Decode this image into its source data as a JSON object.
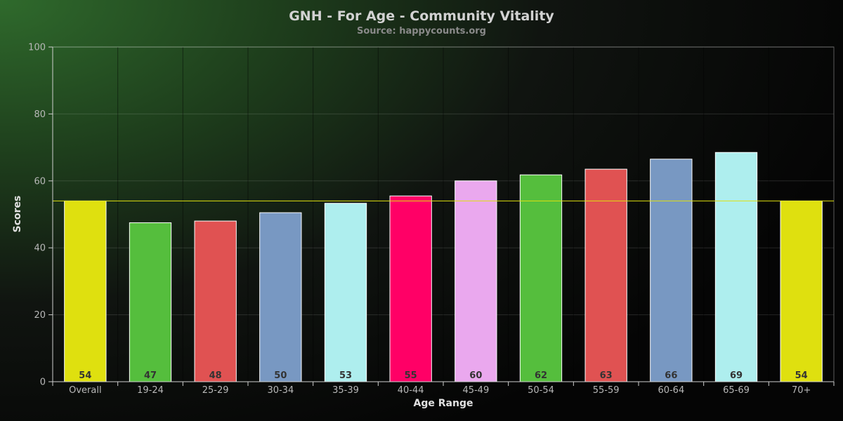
{
  "chart_data": {
    "type": "bar",
    "title": "GNH - For Age - Community Vitality",
    "subtitle": "Source: happycounts.org",
    "xlabel": "Age Range",
    "ylabel": "Scores",
    "ylim": [
      0,
      100
    ],
    "yticks": [
      0,
      20,
      40,
      60,
      80,
      100
    ],
    "grid": true,
    "categories": [
      "Overall",
      "19-24",
      "25-29",
      "30-34",
      "35-39",
      "40-44",
      "45-49",
      "50-54",
      "55-59",
      "60-64",
      "65-69",
      "70+"
    ],
    "values": [
      54,
      47.5,
      48,
      50.5,
      53.3,
      55.5,
      60,
      61.8,
      63.5,
      66.5,
      68.5,
      54
    ],
    "data_labels": [
      "54",
      "47",
      "48",
      "50",
      "53",
      "55",
      "60",
      "62",
      "63",
      "66",
      "69",
      "54"
    ],
    "bar_colors": [
      "#dfe00f",
      "#55be3d",
      "#e05252",
      "#7898c2",
      "#aeeeee",
      "#ff0066",
      "#eaa8ee",
      "#55be3d",
      "#e05252",
      "#7898c2",
      "#aeeeee",
      "#dfe00f"
    ],
    "reference_line": {
      "value": 54,
      "color": "#dfe00f"
    }
  }
}
